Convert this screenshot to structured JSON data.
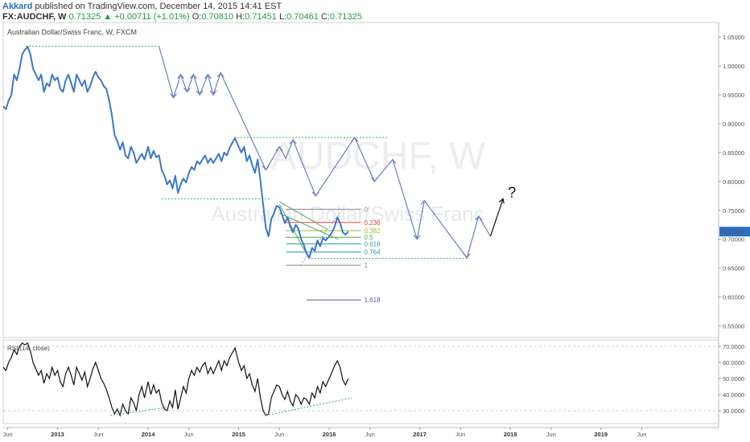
{
  "header": {
    "author": "Akkard",
    "published_text": "published on TradingView.com, December 14, 2015 14:41 EST",
    "symbol": "FX:AUDCHF, W",
    "change": "0.71325 ▲ +0.00711 (+1.01%)",
    "ohlc": [
      {
        "label": "O:",
        "value": "0.70810"
      },
      {
        "label": "H:",
        "value": "0.71451"
      },
      {
        "label": "L:",
        "value": "0.70461"
      },
      {
        "label": "C:",
        "value": "0.71325"
      }
    ]
  },
  "chart_data": {
    "type": "line",
    "title": "Australian Dollar/Swiss Franc, W, FXCM",
    "watermark": {
      "symbol": "AUDCHF, W",
      "name": "Australian Dollar/Swiss Franc"
    },
    "ylim": [
      0.53,
      1.075
    ],
    "xlim": [
      2012.4,
      2020.3
    ],
    "y_ticks": [
      1.05,
      1.0,
      0.95,
      0.9,
      0.85,
      0.8,
      0.75,
      0.7,
      0.65,
      0.6,
      0.55
    ],
    "y_tick_labels": [
      "1.05000",
      "1.00000",
      "0.95000",
      "0.90000",
      "0.85000",
      "0.80000",
      "0.75000",
      "0.70000",
      "0.65000",
      "0.60000",
      "0.55000"
    ],
    "x_ticks": [
      {
        "t": 2012.45,
        "label": "Jun",
        "bold": false
      },
      {
        "t": 2013.0,
        "label": "2013",
        "bold": true
      },
      {
        "t": 2013.45,
        "label": "Jun",
        "bold": false
      },
      {
        "t": 2014.0,
        "label": "2014",
        "bold": true
      },
      {
        "t": 2014.45,
        "label": "Jun",
        "bold": false
      },
      {
        "t": 2015.0,
        "label": "2015",
        "bold": true
      },
      {
        "t": 2015.45,
        "label": "Jun",
        "bold": false
      },
      {
        "t": 2016.0,
        "label": "2016",
        "bold": true
      },
      {
        "t": 2016.45,
        "label": "Jun",
        "bold": false
      },
      {
        "t": 2017.0,
        "label": "2017",
        "bold": true
      },
      {
        "t": 2017.45,
        "label": "Jun",
        "bold": false
      },
      {
        "t": 2018.0,
        "label": "2018",
        "bold": true
      },
      {
        "t": 2018.45,
        "label": "Jun",
        "bold": false
      },
      {
        "t": 2019.0,
        "label": "2019",
        "bold": true
      },
      {
        "t": 2019.45,
        "label": "Jun",
        "bold": false
      }
    ],
    "last_price": {
      "value": 0.71325,
      "label": "0.71325",
      "color": "#2a6fc4"
    },
    "series": [
      {
        "color": "#3d78c8",
        "points": [
          [
            2012.4,
            0.93
          ],
          [
            2012.43,
            0.925
          ],
          [
            2012.46,
            0.94
          ],
          [
            2012.49,
            0.95
          ],
          [
            2012.52,
            0.985
          ],
          [
            2012.55,
            0.975
          ],
          [
            2012.58,
            0.995
          ],
          [
            2012.61,
            1.02
          ],
          [
            2012.64,
            1.028
          ],
          [
            2012.67,
            1.033
          ],
          [
            2012.7,
            1.02
          ],
          [
            2012.73,
            0.995
          ],
          [
            2012.76,
            0.985
          ],
          [
            2012.79,
            0.975
          ],
          [
            2012.82,
            0.985
          ],
          [
            2012.85,
            0.955
          ],
          [
            2012.88,
            0.97
          ],
          [
            2012.91,
            0.965
          ],
          [
            2012.94,
            0.985
          ],
          [
            2012.97,
            0.975
          ],
          [
            2013.0,
            0.98
          ],
          [
            2013.03,
            0.96
          ],
          [
            2013.06,
            0.955
          ],
          [
            2013.09,
            0.975
          ],
          [
            2013.12,
            0.985
          ],
          [
            2013.15,
            0.97
          ],
          [
            2013.18,
            0.955
          ],
          [
            2013.21,
            0.985
          ],
          [
            2013.24,
            0.975
          ],
          [
            2013.27,
            0.965
          ],
          [
            2013.3,
            0.975
          ],
          [
            2013.33,
            0.955
          ],
          [
            2013.36,
            0.965
          ],
          [
            2013.39,
            0.98
          ],
          [
            2013.42,
            0.99
          ],
          [
            2013.45,
            0.98
          ],
          [
            2013.48,
            0.975
          ],
          [
            2013.51,
            0.965
          ],
          [
            2013.54,
            0.96
          ],
          [
            2013.57,
            0.94
          ],
          [
            2013.6,
            0.915
          ],
          [
            2013.63,
            0.88
          ],
          [
            2013.66,
            0.87
          ],
          [
            2013.69,
            0.855
          ],
          [
            2013.72,
            0.868
          ],
          [
            2013.75,
            0.845
          ],
          [
            2013.78,
            0.84
          ],
          [
            2013.81,
            0.86
          ],
          [
            2013.84,
            0.85
          ],
          [
            2013.87,
            0.832
          ],
          [
            2013.9,
            0.84
          ],
          [
            2013.93,
            0.848
          ],
          [
            2013.96,
            0.838
          ],
          [
            2014.0,
            0.86
          ],
          [
            2014.03,
            0.84
          ],
          [
            2014.06,
            0.853
          ],
          [
            2014.09,
            0.842
          ],
          [
            2014.12,
            0.845
          ],
          [
            2014.15,
            0.82
          ],
          [
            2014.18,
            0.81
          ],
          [
            2014.21,
            0.795
          ],
          [
            2014.24,
            0.802
          ],
          [
            2014.27,
            0.788
          ],
          [
            2014.3,
            0.81
          ],
          [
            2014.33,
            0.78
          ],
          [
            2014.36,
            0.795
          ],
          [
            2014.39,
            0.805
          ],
          [
            2014.42,
            0.798
          ],
          [
            2014.45,
            0.815
          ],
          [
            2014.48,
            0.825
          ],
          [
            2014.51,
            0.82
          ],
          [
            2014.54,
            0.835
          ],
          [
            2014.57,
            0.83
          ],
          [
            2014.6,
            0.838
          ],
          [
            2014.63,
            0.845
          ],
          [
            2014.66,
            0.832
          ],
          [
            2014.69,
            0.84
          ],
          [
            2014.72,
            0.832
          ],
          [
            2014.75,
            0.84
          ],
          [
            2014.78,
            0.848
          ],
          [
            2014.81,
            0.835
          ],
          [
            2014.84,
            0.85
          ],
          [
            2014.87,
            0.845
          ],
          [
            2014.9,
            0.858
          ],
          [
            2014.93,
            0.867
          ],
          [
            2014.96,
            0.875
          ],
          [
            2015.0,
            0.86
          ],
          [
            2015.03,
            0.85
          ],
          [
            2015.06,
            0.86
          ],
          [
            2015.09,
            0.835
          ],
          [
            2015.12,
            0.845
          ],
          [
            2015.15,
            0.828
          ],
          [
            2015.18,
            0.815
          ],
          [
            2015.21,
            0.838
          ],
          [
            2015.24,
            0.802
          ],
          [
            2015.27,
            0.76
          ],
          [
            2015.3,
            0.72
          ],
          [
            2015.33,
            0.705
          ],
          [
            2015.36,
            0.735
          ],
          [
            2015.39,
            0.745
          ],
          [
            2015.42,
            0.758
          ],
          [
            2015.45,
            0.755
          ],
          [
            2015.48,
            0.742
          ],
          [
            2015.51,
            0.728
          ],
          [
            2015.54,
            0.738
          ],
          [
            2015.57,
            0.722
          ],
          [
            2015.6,
            0.712
          ],
          [
            2015.63,
            0.725
          ],
          [
            2015.66,
            0.718
          ],
          [
            2015.69,
            0.7
          ],
          [
            2015.72,
            0.69
          ],
          [
            2015.75,
            0.675
          ],
          [
            2015.78,
            0.668
          ],
          [
            2015.81,
            0.685
          ],
          [
            2015.84,
            0.68
          ],
          [
            2015.87,
            0.698
          ],
          [
            2015.9,
            0.688
          ],
          [
            2015.93,
            0.702
          ],
          [
            2015.96,
            0.698
          ],
          [
            2016.0,
            0.705
          ],
          [
            2016.03,
            0.712
          ],
          [
            2016.06,
            0.722
          ],
          [
            2016.09,
            0.738
          ],
          [
            2016.12,
            0.728
          ],
          [
            2016.15,
            0.712
          ],
          [
            2016.18,
            0.708
          ],
          [
            2016.21,
            0.71325
          ]
        ]
      }
    ],
    "rsi": {
      "title": "RSI (14, close)",
      "ylim": [
        22,
        74
      ],
      "y_ticks": [
        70,
        60,
        50,
        40,
        30
      ],
      "y_tick_labels": [
        "70.0000",
        "60.0000",
        "50.0000",
        "40.0000",
        "30.0000"
      ],
      "points": [
        [
          2012.4,
          57
        ],
        [
          2012.43,
          55
        ],
        [
          2012.46,
          60
        ],
        [
          2012.49,
          63
        ],
        [
          2012.52,
          68
        ],
        [
          2012.55,
          65
        ],
        [
          2012.58,
          70
        ],
        [
          2012.61,
          72
        ],
        [
          2012.64,
          71
        ],
        [
          2012.67,
          72
        ],
        [
          2012.7,
          67
        ],
        [
          2012.73,
          60
        ],
        [
          2012.76,
          56
        ],
        [
          2012.79,
          52
        ],
        [
          2012.82,
          55
        ],
        [
          2012.85,
          47
        ],
        [
          2012.88,
          53
        ],
        [
          2012.91,
          50
        ],
        [
          2012.94,
          57
        ],
        [
          2012.97,
          52
        ],
        [
          2013.0,
          55
        ],
        [
          2013.03,
          48
        ],
        [
          2013.06,
          45
        ],
        [
          2013.09,
          53
        ],
        [
          2013.12,
          57
        ],
        [
          2013.15,
          52
        ],
        [
          2013.18,
          46
        ],
        [
          2013.21,
          57
        ],
        [
          2013.24,
          53
        ],
        [
          2013.27,
          49
        ],
        [
          2013.3,
          54
        ],
        [
          2013.33,
          45
        ],
        [
          2013.36,
          50
        ],
        [
          2013.39,
          56
        ],
        [
          2013.42,
          60
        ],
        [
          2013.45,
          55
        ],
        [
          2013.48,
          50
        ],
        [
          2013.51,
          47
        ],
        [
          2013.54,
          43
        ],
        [
          2013.57,
          38
        ],
        [
          2013.6,
          32
        ],
        [
          2013.63,
          28
        ],
        [
          2013.66,
          31
        ],
        [
          2013.69,
          27
        ],
        [
          2013.72,
          34
        ],
        [
          2013.75,
          30
        ],
        [
          2013.78,
          28
        ],
        [
          2013.81,
          38
        ],
        [
          2013.84,
          35
        ],
        [
          2013.87,
          30
        ],
        [
          2013.9,
          40
        ],
        [
          2013.93,
          45
        ],
        [
          2013.96,
          38
        ],
        [
          2014.0,
          48
        ],
        [
          2014.03,
          40
        ],
        [
          2014.06,
          46
        ],
        [
          2014.09,
          41
        ],
        [
          2014.12,
          43
        ],
        [
          2014.15,
          35
        ],
        [
          2014.18,
          31
        ],
        [
          2014.21,
          30
        ],
        [
          2014.24,
          36
        ],
        [
          2014.27,
          32
        ],
        [
          2014.3,
          43
        ],
        [
          2014.33,
          31
        ],
        [
          2014.36,
          38
        ],
        [
          2014.39,
          45
        ],
        [
          2014.42,
          41
        ],
        [
          2014.45,
          50
        ],
        [
          2014.48,
          55
        ],
        [
          2014.51,
          52
        ],
        [
          2014.54,
          57
        ],
        [
          2014.57,
          54
        ],
        [
          2014.6,
          58
        ],
        [
          2014.63,
          60
        ],
        [
          2014.66,
          53
        ],
        [
          2014.69,
          57
        ],
        [
          2014.72,
          53
        ],
        [
          2014.75,
          57
        ],
        [
          2014.78,
          61
        ],
        [
          2014.81,
          55
        ],
        [
          2014.84,
          61
        ],
        [
          2014.87,
          58
        ],
        [
          2014.9,
          63
        ],
        [
          2014.93,
          66
        ],
        [
          2014.96,
          69
        ],
        [
          2015.0,
          60
        ],
        [
          2015.03,
          55
        ],
        [
          2015.06,
          58
        ],
        [
          2015.09,
          50
        ],
        [
          2015.12,
          53
        ],
        [
          2015.15,
          46
        ],
        [
          2015.18,
          42
        ],
        [
          2015.21,
          50
        ],
        [
          2015.24,
          38
        ],
        [
          2015.27,
          30
        ],
        [
          2015.3,
          27
        ],
        [
          2015.33,
          28
        ],
        [
          2015.36,
          38
        ],
        [
          2015.39,
          42
        ],
        [
          2015.42,
          46
        ],
        [
          2015.45,
          45
        ],
        [
          2015.48,
          40
        ],
        [
          2015.51,
          37
        ],
        [
          2015.54,
          42
        ],
        [
          2015.57,
          36
        ],
        [
          2015.6,
          33
        ],
        [
          2015.63,
          40
        ],
        [
          2015.66,
          38
        ],
        [
          2015.69,
          34
        ],
        [
          2015.72,
          38
        ],
        [
          2015.75,
          37
        ],
        [
          2015.78,
          34
        ],
        [
          2015.81,
          41
        ],
        [
          2015.84,
          38
        ],
        [
          2015.87,
          45
        ],
        [
          2015.9,
          41
        ],
        [
          2015.93,
          48
        ],
        [
          2015.96,
          45
        ],
        [
          2016.0,
          50
        ],
        [
          2016.03,
          54
        ],
        [
          2016.06,
          58
        ],
        [
          2016.09,
          61
        ],
        [
          2016.12,
          57
        ],
        [
          2016.15,
          49
        ],
        [
          2016.18,
          46
        ],
        [
          2016.21,
          50
        ]
      ]
    },
    "fibonacci": [
      {
        "ratio": 0,
        "label": "0",
        "color": "#888888"
      },
      {
        "ratio": 0.236,
        "label": "0.236",
        "color": "#e0403a"
      },
      {
        "ratio": 0.382,
        "label": "0.382",
        "color": "#9bbf2f"
      },
      {
        "ratio": 0.5,
        "label": "0.5",
        "color": "#3fb34f"
      },
      {
        "ratio": 0.618,
        "label": "0.618",
        "color": "#2fa58e"
      },
      {
        "ratio": 0.764,
        "label": "0.764",
        "color": "#2f95c2"
      },
      {
        "ratio": 1,
        "label": "1",
        "color": "#888888"
      },
      {
        "ratio": 1.618,
        "label": "1.618",
        "color": "#5a5ab0"
      }
    ],
    "fib_range": {
      "t_start": 2015.52,
      "t_end": 2016.35,
      "high": 0.752,
      "low": 0.655
    },
    "annotation": "?"
  }
}
